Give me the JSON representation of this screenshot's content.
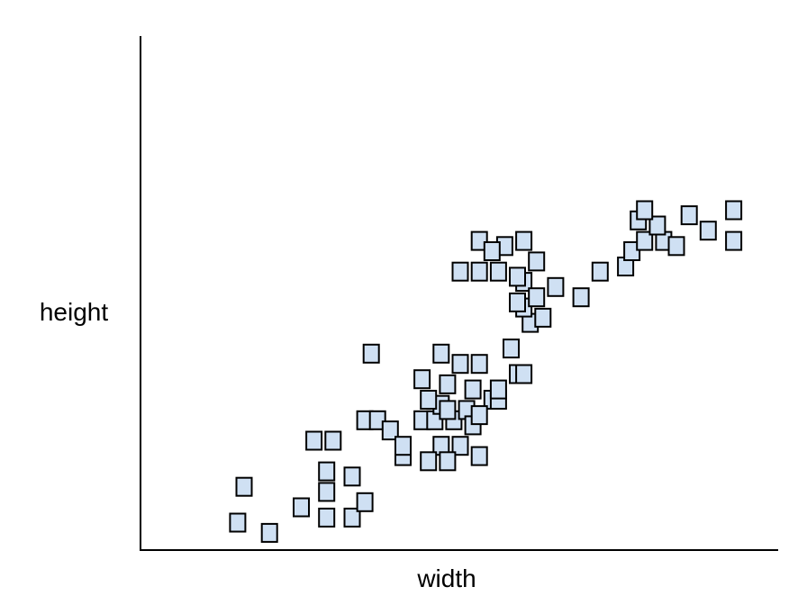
{
  "chart_data": {
    "type": "scatter",
    "title": "",
    "xlabel": "width",
    "ylabel": "height",
    "xlim": [
      0,
      100
    ],
    "ylim": [
      0,
      100
    ],
    "grid": false,
    "legend": "none",
    "marker": "square",
    "colors": {
      "marker_fill": "#cfe0f3",
      "marker_stroke": "#000000",
      "axis": "#000000"
    },
    "series": [
      {
        "points": [
          [
            16,
            12
          ],
          [
            15,
            5
          ],
          [
            20,
            3
          ],
          [
            25,
            8
          ],
          [
            29,
            6
          ],
          [
            33,
            6
          ],
          [
            35,
            9
          ],
          [
            33,
            14
          ],
          [
            29,
            11
          ],
          [
            29,
            15
          ],
          [
            27,
            21
          ],
          [
            30,
            21
          ],
          [
            35,
            25
          ],
          [
            37,
            25
          ],
          [
            41,
            18
          ],
          [
            39,
            23
          ],
          [
            41,
            20
          ],
          [
            44,
            25
          ],
          [
            49,
            25
          ],
          [
            47,
            20
          ],
          [
            50,
            20
          ],
          [
            45,
            17
          ],
          [
            48,
            17
          ],
          [
            53,
            18
          ],
          [
            55,
            29
          ],
          [
            56,
            29
          ],
          [
            56,
            31
          ],
          [
            51,
            27
          ],
          [
            46,
            25
          ],
          [
            47,
            28
          ],
          [
            48,
            27
          ],
          [
            52,
            24
          ],
          [
            53,
            26
          ],
          [
            44,
            33
          ],
          [
            47,
            38
          ],
          [
            50,
            36
          ],
          [
            53,
            36
          ],
          [
            59,
            34
          ],
          [
            60,
            34
          ],
          [
            58,
            39
          ],
          [
            61,
            44
          ],
          [
            63,
            45
          ],
          [
            60,
            47
          ],
          [
            59,
            48
          ],
          [
            56,
            54
          ],
          [
            53,
            54
          ],
          [
            50,
            54
          ],
          [
            53,
            60
          ],
          [
            57,
            59
          ],
          [
            60,
            52
          ],
          [
            62,
            49
          ],
          [
            65,
            51
          ],
          [
            69,
            49
          ],
          [
            72,
            54
          ],
          [
            76,
            55
          ],
          [
            77,
            58
          ],
          [
            79,
            60
          ],
          [
            82,
            60
          ],
          [
            81,
            63
          ],
          [
            84,
            59
          ],
          [
            86,
            65
          ],
          [
            89,
            62
          ],
          [
            93,
            66
          ],
          [
            93,
            60
          ],
          [
            78,
            64
          ],
          [
            79,
            66
          ],
          [
            60,
            60
          ],
          [
            62,
            56
          ],
          [
            59,
            53
          ],
          [
            45,
            29
          ],
          [
            48,
            32
          ],
          [
            52,
            31
          ],
          [
            36,
            38
          ],
          [
            55,
            58
          ]
        ]
      }
    ]
  }
}
